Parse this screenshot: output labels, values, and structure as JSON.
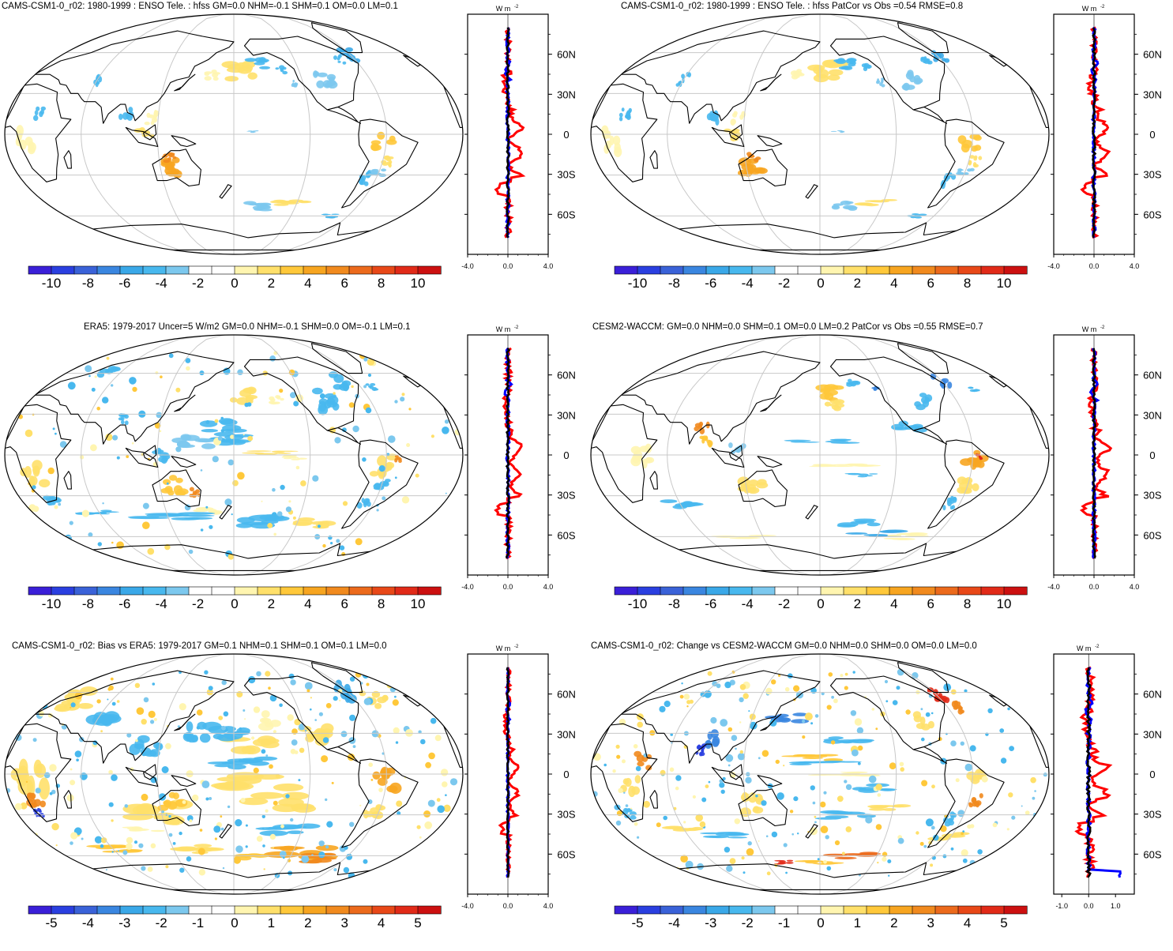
{
  "units_label": "W m",
  "units_exp": "-2",
  "lat_labels": [
    "60N",
    "30N",
    "0",
    "30S",
    "60S"
  ],
  "lat_values": [
    60,
    30,
    0,
    -30,
    -60
  ],
  "panels": [
    {
      "title": "CAMS-CSM1-0_r02: 1980-1999 : ENSO Tele. : hfss GM=0.0 NHM=-0.1 SHM=0.1 OM=0.0 LM=0.1",
      "colorbar_ticks": [
        "-10",
        "-8",
        "-6",
        "-4",
        "-2",
        "0",
        "2",
        "4",
        "6",
        "8",
        "10"
      ],
      "profile_xticks": [
        "-4.0",
        "0.0",
        "4.0"
      ],
      "profile_xrange": [
        -4,
        4
      ],
      "style": "model"
    },
    {
      "title": "CAMS-CSM1-0_r02: 1980-1999 : ENSO Tele. : hfss PatCor vs Obs =0.54 RMSE=0.8",
      "colorbar_ticks": [
        "-10",
        "-8",
        "-6",
        "-4",
        "-2",
        "0",
        "2",
        "4",
        "6",
        "8",
        "10"
      ],
      "profile_xticks": [
        "-4.0",
        "0.0",
        "4.0"
      ],
      "profile_xrange": [
        -4,
        4
      ],
      "style": "model"
    },
    {
      "title": "ERA5: 1979-2017 Uncer=5 W/m2 GM=0.0 NHM=-0.1 SHM=0.0 OM=-0.1 LM=0.1",
      "colorbar_ticks": [
        "-10",
        "-8",
        "-6",
        "-4",
        "-2",
        "0",
        "2",
        "4",
        "6",
        "8",
        "10"
      ],
      "profile_xticks": [
        "-4.0",
        "0.0",
        "4.0"
      ],
      "profile_xrange": [
        -4,
        4
      ],
      "style": "obs"
    },
    {
      "title": "CESM2-WACCM: GM=0.0 NHM=0.0 SHM=0.1 OM=0.0 LM=0.2 PatCor vs Obs =0.55 RMSE=0.7",
      "colorbar_ticks": [
        "-10",
        "-8",
        "-6",
        "-4",
        "-2",
        "0",
        "2",
        "4",
        "6",
        "8",
        "10"
      ],
      "profile_xticks": [
        "-4.0",
        "0.0",
        "4.0"
      ],
      "profile_xrange": [
        -4,
        4
      ],
      "style": "cesm"
    },
    {
      "title": "CAMS-CSM1-0_r02: Bias vs ERA5: 1979-2017 GM=0.1 NHM=0.1 SHM=0.1 OM=0.1 LM=0.0",
      "colorbar_ticks": [
        "-5",
        "-4",
        "-3",
        "-2",
        "-1",
        "0",
        "1",
        "2",
        "3",
        "4",
        "5"
      ],
      "profile_xticks": [
        "-4.0",
        "0.0",
        "4.0"
      ],
      "profile_xrange": [
        -4,
        4
      ],
      "style": "bias"
    },
    {
      "title": "CAMS-CSM1-0_r02: Change vs CESM2-WACCM GM=0.0 NHM=0.0 SHM=0.0 OM=0.0 LM=0.0",
      "colorbar_ticks": [
        "-5",
        "-4",
        "-3",
        "-2",
        "-1",
        "0",
        "1",
        "2",
        "3",
        "4",
        "5"
      ],
      "profile_xticks": [
        "-1.0",
        "0.0",
        "1.0"
      ],
      "profile_xrange": [
        -1.3,
        1.7
      ],
      "style": "change"
    }
  ],
  "colors": {
    "scale": [
      "#3a1fd8",
      "#2a3fe0",
      "#3a62d8",
      "#3a86e0",
      "#3aa8e8",
      "#48b8ee",
      "#7cc8ee",
      "#ffffff",
      "#ffffff",
      "#fff5b0",
      "#ffe06a",
      "#ffc83a",
      "#f7a520",
      "#f18a1e",
      "#ec6a1c",
      "#e84818",
      "#e12a18",
      "#cc1010"
    ],
    "red_line": "#ff0000",
    "blue_line": "#0000ff",
    "black_line": "#000000"
  }
}
